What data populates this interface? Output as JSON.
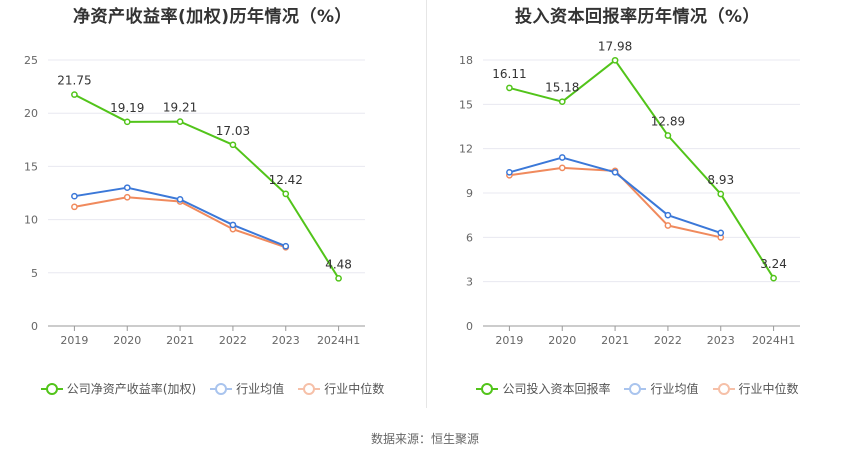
{
  "charts": [
    {
      "title": "净资产收益率(加权)历年情况（%）",
      "legend": [
        "公司净资产收益率(加权)",
        "行业均值",
        "行业中位数"
      ]
    },
    {
      "title": "投入资本回报率历年情况（%）",
      "legend": [
        "公司投入资本回报率",
        "行业均值",
        "行业中位数"
      ]
    }
  ],
  "footer": "数据来源：恒生聚源",
  "colors": {
    "company": "#52c41a",
    "industry_avg": "#3b78d8",
    "industry_median": "#f08a5d",
    "grid": "#e8e8f0",
    "axis_text": "#666666"
  },
  "chart_data": [
    {
      "type": "line",
      "title": "净资产收益率(加权)历年情况（%）",
      "categories": [
        "2019",
        "2020",
        "2021",
        "2022",
        "2023",
        "2024H1"
      ],
      "ylim": [
        0,
        25
      ],
      "yticks": [
        0,
        5,
        10,
        15,
        20,
        25
      ],
      "grid": true,
      "legend_position": "bottom",
      "series": [
        {
          "name": "公司净资产收益率(加权)",
          "values": [
            21.75,
            19.19,
            19.21,
            17.03,
            12.42,
            4.48
          ],
          "labels": [
            "21.75",
            "19.19",
            "19.21",
            "17.03",
            "12.42",
            "4.48"
          ]
        },
        {
          "name": "行业均值",
          "values": [
            12.2,
            13.0,
            11.9,
            9.5,
            7.5,
            null
          ]
        },
        {
          "name": "行业中位数",
          "values": [
            11.2,
            12.1,
            11.7,
            9.1,
            7.4,
            null
          ]
        }
      ]
    },
    {
      "type": "line",
      "title": "投入资本回报率历年情况（%）",
      "categories": [
        "2019",
        "2020",
        "2021",
        "2022",
        "2023",
        "2024H1"
      ],
      "ylim": [
        0,
        18
      ],
      "yticks": [
        0,
        3,
        6,
        9,
        12,
        15,
        18
      ],
      "grid": true,
      "legend_position": "bottom",
      "series": [
        {
          "name": "公司投入资本回报率",
          "values": [
            16.11,
            15.18,
            17.98,
            12.89,
            8.93,
            3.24
          ],
          "labels": [
            "16.11",
            "15.18",
            "17.98",
            "12.89",
            "8.93",
            "3.24"
          ]
        },
        {
          "name": "行业均值",
          "values": [
            10.4,
            11.4,
            10.4,
            7.5,
            6.3,
            null
          ]
        },
        {
          "name": "行业中位数",
          "values": [
            10.2,
            10.7,
            10.5,
            6.8,
            6.0,
            null
          ]
        }
      ]
    }
  ]
}
